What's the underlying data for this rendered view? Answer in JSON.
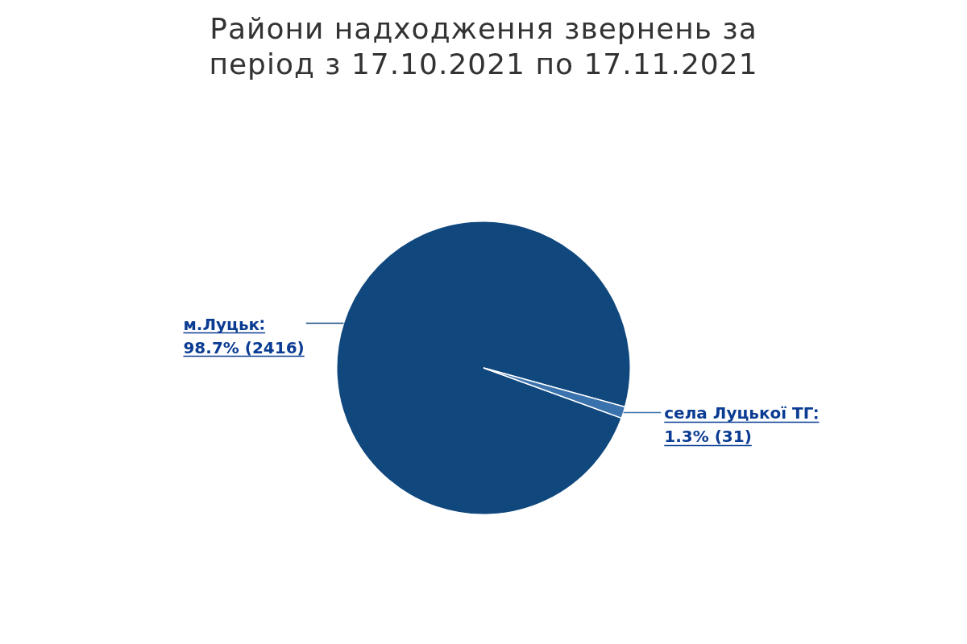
{
  "chart_data": {
    "type": "pie",
    "title": "Райони надходження звернень за період з 17.10.2021 по 17.11.2021",
    "categories": [
      "м.Луцьк",
      "села Луцької ТГ"
    ],
    "values": [
      2416,
      31
    ],
    "colors": [
      "#10487e",
      "#3a72ad"
    ],
    "value_labels": [
      "98.7% (2416)",
      "1.3% (31)"
    ],
    "legend": false
  }
}
